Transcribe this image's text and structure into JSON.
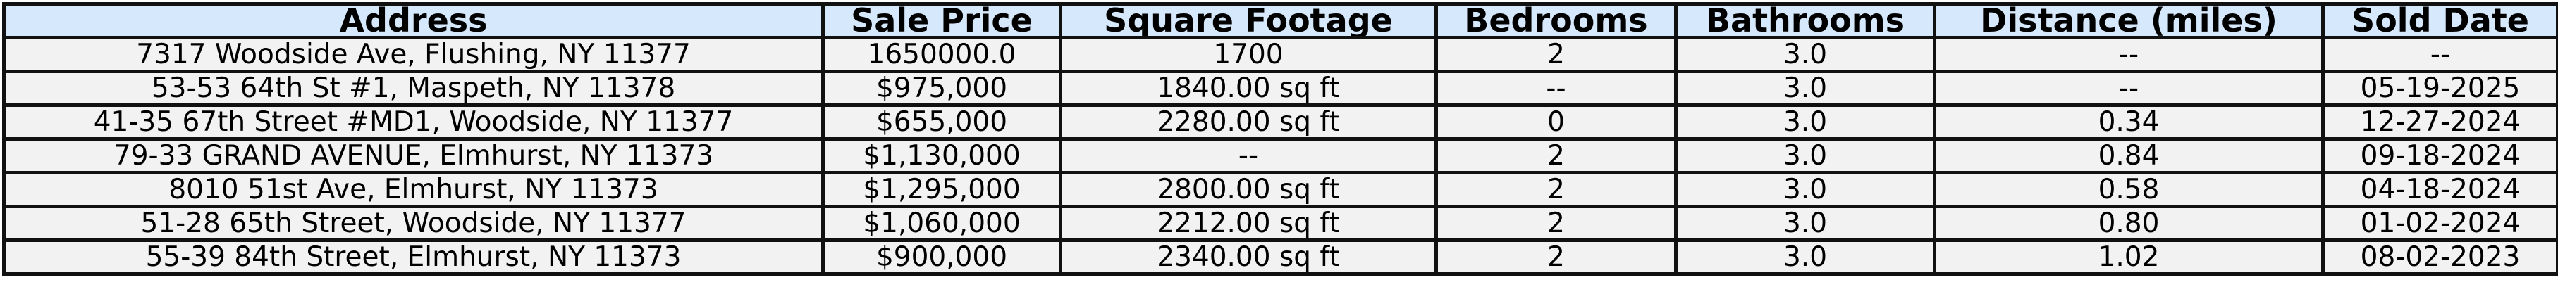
{
  "table": {
    "headers": [
      "Address",
      "Sale Price",
      "Square Footage",
      "Bedrooms",
      "Bathrooms",
      "Distance (miles)",
      "Sold Date"
    ],
    "rows": [
      [
        "7317 Woodside Ave, Flushing, NY 11377",
        "1650000.0",
        "1700",
        "2",
        "3.0",
        "--",
        "--"
      ],
      [
        "53-53 64th St #1, Maspeth, NY 11378",
        "$975,000",
        "1840.00 sq ft",
        "--",
        "3.0",
        "--",
        "05-19-2025"
      ],
      [
        "41-35 67th Street #MD1, Woodside, NY 11377",
        "$655,000",
        "2280.00 sq ft",
        "0",
        "3.0",
        "0.34",
        "12-27-2024"
      ],
      [
        "79-33 GRAND AVENUE, Elmhurst, NY 11373",
        "$1,130,000",
        "--",
        "2",
        "3.0",
        "0.84",
        "09-18-2024"
      ],
      [
        "8010 51st Ave, Elmhurst, NY 11373",
        "$1,295,000",
        "2800.00 sq ft",
        "2",
        "3.0",
        "0.58",
        "04-18-2024"
      ],
      [
        "51-28 65th Street, Woodside, NY 11377",
        "$1,060,000",
        "2212.00 sq ft",
        "2",
        "3.0",
        "0.80",
        "01-02-2024"
      ],
      [
        "55-39 84th Street, Elmhurst, NY 11373",
        "$900,000",
        "2340.00 sq ft",
        "2",
        "3.0",
        "1.02",
        "08-02-2023"
      ]
    ]
  },
  "colors": {
    "header_background": "#d6e8fb",
    "row_background": "#f2f2f2",
    "border": "#111111"
  }
}
